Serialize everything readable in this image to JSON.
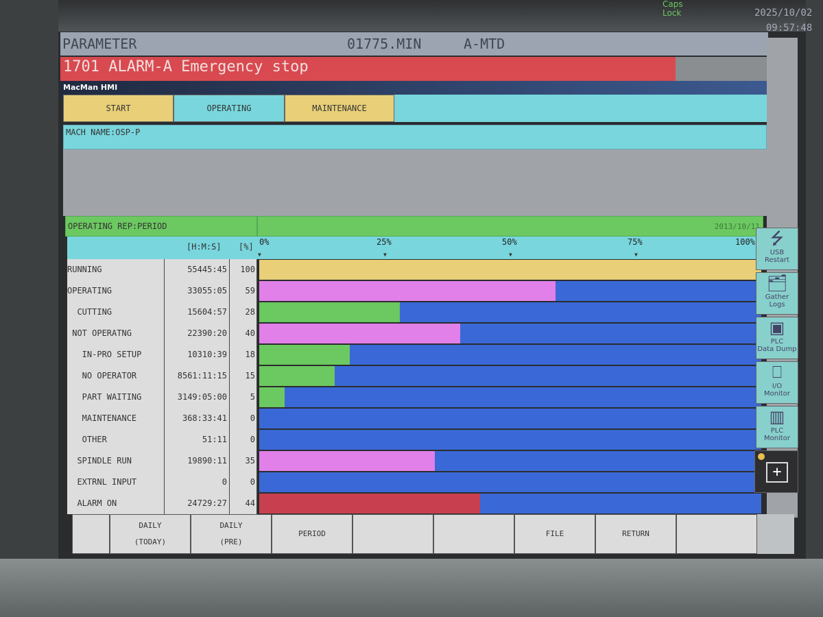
{
  "status": {
    "caps_lock": "Caps\nLock",
    "date": "2025/10/02",
    "time": "09:57:48"
  },
  "header": {
    "title": "PARAMETER",
    "program": "01775.MIN",
    "mode": "A-MTD"
  },
  "alarm": {
    "text": "1701 ALARM-A Emergency stop"
  },
  "app": {
    "name": "MacMan HMI"
  },
  "tabs": [
    {
      "label": "START"
    },
    {
      "label": "OPERATING"
    },
    {
      "label": "MAINTENANCE"
    }
  ],
  "machine": {
    "name": "MACH NAME:OSP-P"
  },
  "report": {
    "title": "OPERATING REP:PERIOD",
    "date": "2013/10/11",
    "col_time": "[H:M:S]",
    "col_pct": "[%]",
    "scale": [
      "0%",
      "25%",
      "50%",
      "75%",
      "100%"
    ]
  },
  "colors": {
    "yellow": "#e8cf78",
    "pink": "#e080e8",
    "green": "#6cc860",
    "blue": "#3a68d6",
    "red": "#c84050"
  },
  "rows": [
    {
      "label": "RUNNING",
      "time": "55445:45",
      "pct": 100,
      "color": "#e8cf78"
    },
    {
      "label": "OPERATING",
      "time": "33055:05",
      "pct": 59,
      "color": "#e080e8"
    },
    {
      "label": "  CUTTING",
      "time": "15604:57",
      "pct": 28,
      "color": "#6cc860"
    },
    {
      "label": " NOT OPERATNG",
      "time": "22390:20",
      "pct": 40,
      "color": "#e080e8"
    },
    {
      "label": "   IN-PRO SETUP",
      "time": "10310:39",
      "pct": 18,
      "color": "#6cc860"
    },
    {
      "label": "   NO OPERATOR",
      "time": "8561:11:15",
      "pct": 15,
      "color": "#6cc860"
    },
    {
      "label": "   PART WAITING",
      "time": "3149:05:00",
      "pct": 5,
      "color": "#6cc860"
    },
    {
      "label": "   MAINTENANCE",
      "time": "368:33:41",
      "pct": 0,
      "color": "#6cc860"
    },
    {
      "label": "   OTHER",
      "time": "51:11",
      "pct": 0,
      "color": "#6cc860"
    },
    {
      "label": "  SPINDLE RUN",
      "time": "19890:11",
      "pct": 35,
      "color": "#e080e8"
    },
    {
      "label": "  EXTRNL INPUT",
      "time": "0",
      "pct": 0,
      "color": "#e080e8"
    },
    {
      "label": "  ALARM ON",
      "time": "24729:27",
      "pct": 44,
      "color": "#c84050"
    }
  ],
  "side_buttons": [
    {
      "label": "USB\nRestart",
      "icon": "usb-icon"
    },
    {
      "label": "Gather\nLogs",
      "icon": "folder-icon"
    },
    {
      "label": "PLC\nData Dump",
      "icon": "plc-dump-icon"
    },
    {
      "label": "I/O\nMonitor",
      "icon": "io-icon"
    },
    {
      "label": "PLC\nMonitor",
      "icon": "plc-monitor-icon"
    }
  ],
  "softkeys": [
    "",
    "DAILY\n(TODAY)",
    "DAILY\n(PRE)",
    "PERIOD",
    "",
    "",
    "FILE",
    "RETURN",
    ""
  ]
}
